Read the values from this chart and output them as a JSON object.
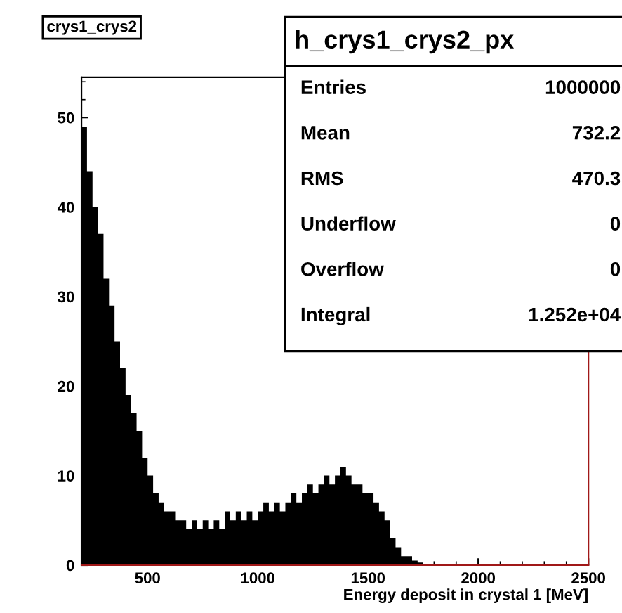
{
  "chart_data": {
    "type": "histogram",
    "title": "crys1_crys2",
    "xlabel": "Energy deposit in crystal 1 [MeV]",
    "bins": [
      200,
      225,
      250,
      275,
      300,
      325,
      350,
      375,
      400,
      425,
      450,
      475,
      500,
      525,
      550,
      575,
      600,
      625,
      650,
      675,
      700,
      725,
      750,
      775,
      800,
      825,
      850,
      875,
      900,
      925,
      950,
      975,
      1000,
      1025,
      1050,
      1075,
      1100,
      1125,
      1150,
      1175,
      1200,
      1225,
      1250,
      1275,
      1300,
      1325,
      1350,
      1375,
      1400,
      1425,
      1450,
      1475,
      1500,
      1525,
      1550,
      1575,
      1600,
      1625,
      1650,
      1675,
      1700,
      1725,
      1750,
      1775,
      1800,
      1825,
      1850,
      1875,
      1900,
      1925,
      1950,
      1975,
      2000,
      2025,
      2050,
      2075,
      2100,
      2125,
      2150,
      2175,
      2200,
      2225,
      2250,
      2275,
      2300,
      2325,
      2350,
      2375,
      2400,
      2425,
      2450,
      2475,
      2500
    ],
    "values": [
      49,
      44,
      40,
      37,
      32,
      29,
      25,
      22,
      19,
      17,
      15,
      12,
      10,
      8,
      7,
      6,
      6,
      5,
      5,
      4,
      5,
      4,
      5,
      4,
      5,
      4,
      6,
      5,
      6,
      5,
      6,
      5,
      6,
      7,
      6,
      7,
      6,
      7,
      8,
      7,
      8,
      9,
      8,
      9,
      10,
      9,
      10,
      11,
      10,
      9,
      9,
      8,
      8,
      7,
      6,
      5,
      3,
      2,
      1,
      1,
      0.5,
      0.3,
      0,
      0,
      0,
      0,
      0,
      0,
      0,
      0,
      0,
      0,
      0,
      0,
      0,
      0,
      0,
      0,
      0,
      0,
      0,
      0,
      0,
      0,
      0,
      0,
      0,
      0,
      0,
      0,
      0,
      0
    ],
    "color": "#000000",
    "xlim": [
      200,
      2500
    ],
    "ylim": [
      0,
      54.5
    ],
    "xticks": [
      500,
      1000,
      1500,
      2000,
      2500
    ],
    "yticks": [
      0,
      10,
      20,
      30,
      40,
      50
    ],
    "grid": false,
    "legend": false,
    "annotations": [
      "h_crys1_crys2_px",
      "Entries",
      "1000000",
      "Mean",
      "732.2",
      "RMS",
      "470.3",
      "Underflow",
      "0",
      "Overflow",
      "0",
      "Integral",
      "1.252e+04"
    ]
  }
}
